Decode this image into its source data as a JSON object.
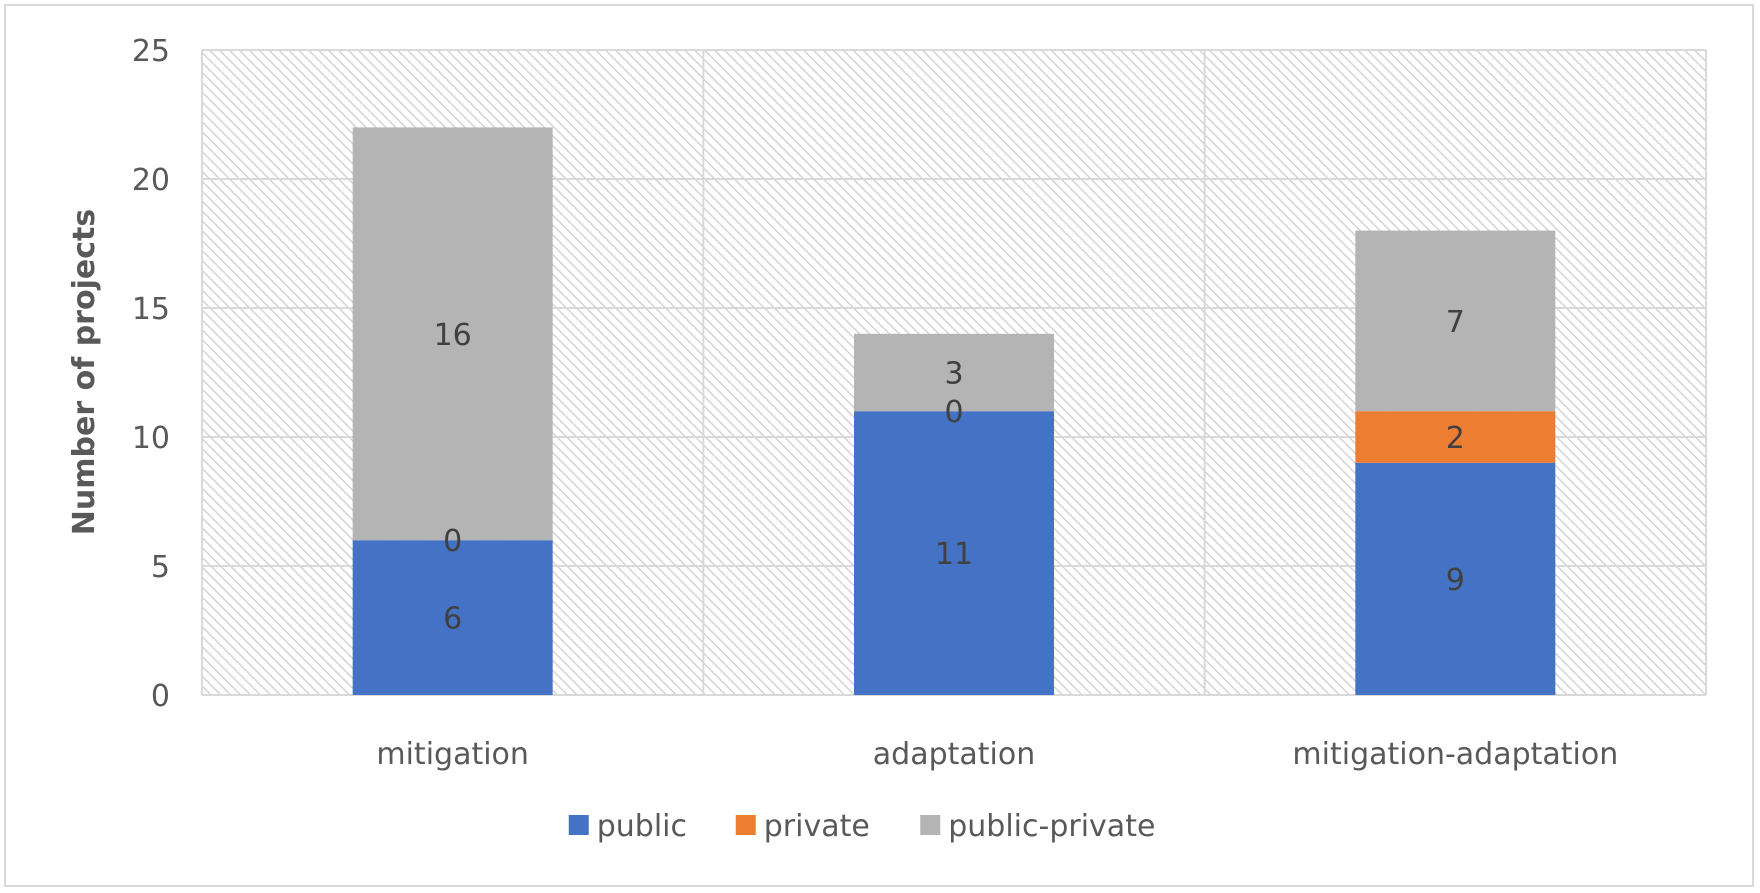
{
  "chart_data": {
    "type": "bar",
    "stacked": true,
    "title": "",
    "xlabel": "",
    "ylabel": "Number of projects",
    "ylim": [
      0,
      25
    ],
    "yticks": [
      0,
      5,
      10,
      15,
      20,
      25
    ],
    "categories": [
      "mitigation",
      "adaptation",
      "mitigation-adaptation"
    ],
    "series": [
      {
        "name": "public",
        "values": [
          6,
          11,
          9
        ],
        "color": "#4472c4"
      },
      {
        "name": "private",
        "values": [
          0,
          0,
          2
        ],
        "color": "#ed7d31"
      },
      {
        "name": "public-private",
        "values": [
          16,
          3,
          7
        ],
        "color": "#b4b4b4"
      }
    ],
    "data_labels": true,
    "grid": true,
    "plot_background": "hatched",
    "legend_position": "bottom"
  }
}
